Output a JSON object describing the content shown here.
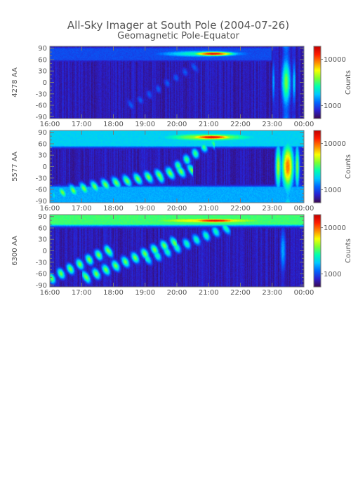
{
  "title": "All-Sky Imager at South Pole (2004-07-26)",
  "subtitle": "Geomagnetic Pole-Equator",
  "chart_data": {
    "type": "heatmap",
    "x_ticks": [
      "16:00",
      "17:00",
      "18:00",
      "19:00",
      "20:00",
      "21:00",
      "22:00",
      "23:00",
      "00:00"
    ],
    "x_range_hours": [
      16,
      24
    ],
    "y_ticks": [
      90,
      60,
      30,
      0,
      -30,
      -60,
      -90
    ],
    "y_range": [
      -95,
      95
    ],
    "colorbar": {
      "label": "Counts",
      "ticks": [
        "10000",
        "1000"
      ],
      "scale": "log",
      "colors": [
        "#3c0a4f",
        "#2a1fcf",
        "#0066ff",
        "#00c8ff",
        "#00ffb0",
        "#7cff30",
        "#f8ff00",
        "#ff8800",
        "#ff1a00",
        "#c00000"
      ]
    },
    "panels": [
      {
        "ylabel": "4278 AA",
        "features": [
          {
            "kind": "band",
            "t0": 16.0,
            "t1": 23.0,
            "lat0": 60,
            "lat1": 90,
            "level": 0.18
          },
          {
            "kind": "spot",
            "t": 21.15,
            "lat": 76,
            "dt": 0.7,
            "dlat": 6,
            "level": 0.95
          },
          {
            "kind": "spot",
            "t": 20.8,
            "lat": 76,
            "dt": 1.6,
            "dlat": 10,
            "level": 0.45
          },
          {
            "kind": "column",
            "t": 23.45,
            "width": 0.15,
            "level": 0.55
          },
          {
            "kind": "column",
            "t": 23.05,
            "width": 0.05,
            "level": 0.3
          },
          {
            "kind": "column",
            "t": 23.7,
            "width": 0.06,
            "level": 0.35
          },
          {
            "kind": "streak",
            "t0": 18.6,
            "lat0": -60,
            "t1": 20.5,
            "lat1": 40,
            "level": 0.2
          }
        ]
      },
      {
        "ylabel": "5577 AA",
        "features": [
          {
            "kind": "band",
            "t0": 16.0,
            "t1": 24.0,
            "lat0": 55,
            "lat1": 95,
            "level": 0.35
          },
          {
            "kind": "band",
            "t0": 16.0,
            "t1": 24.0,
            "lat0": -95,
            "lat1": -55,
            "level": 0.3
          },
          {
            "kind": "spot",
            "t": 21.1,
            "lat": 78,
            "dt": 0.8,
            "dlat": 7,
            "level": 0.95
          },
          {
            "kind": "spot",
            "t": 21.0,
            "lat": 78,
            "dt": 2.0,
            "dlat": 14,
            "level": 0.6
          },
          {
            "kind": "streak",
            "t0": 16.3,
            "lat0": -70,
            "t1": 20.3,
            "lat1": -10,
            "level": 0.55
          },
          {
            "kind": "streak",
            "t0": 19.5,
            "lat0": -30,
            "t1": 21.0,
            "lat1": 60,
            "level": 0.5
          },
          {
            "kind": "column",
            "t": 23.5,
            "width": 0.2,
            "level": 0.8
          },
          {
            "kind": "column",
            "t": 23.2,
            "width": 0.1,
            "level": 0.6
          },
          {
            "kind": "column",
            "t": 23.8,
            "width": 0.08,
            "level": 0.55
          }
        ]
      },
      {
        "ylabel": "6300 AA",
        "features": [
          {
            "kind": "band",
            "t0": 16.0,
            "t1": 24.0,
            "lat0": 70,
            "lat1": 95,
            "level": 0.5
          },
          {
            "kind": "spot",
            "t": 21.2,
            "lat": 80,
            "dt": 1.0,
            "dlat": 6,
            "level": 0.95
          },
          {
            "kind": "spot",
            "t": 21.0,
            "lat": 80,
            "dt": 2.8,
            "dlat": 10,
            "level": 0.7
          },
          {
            "kind": "streak",
            "t0": 16.0,
            "lat0": -75,
            "t1": 17.8,
            "lat1": 0,
            "level": 0.55
          },
          {
            "kind": "streak",
            "t0": 17.2,
            "lat0": -70,
            "t1": 19.8,
            "lat1": 20,
            "level": 0.55
          },
          {
            "kind": "streak",
            "t0": 19.2,
            "lat0": -20,
            "t1": 21.5,
            "lat1": 60,
            "level": 0.45
          },
          {
            "kind": "column",
            "t": 23.35,
            "width": 0.1,
            "level": 0.3
          }
        ]
      }
    ]
  }
}
